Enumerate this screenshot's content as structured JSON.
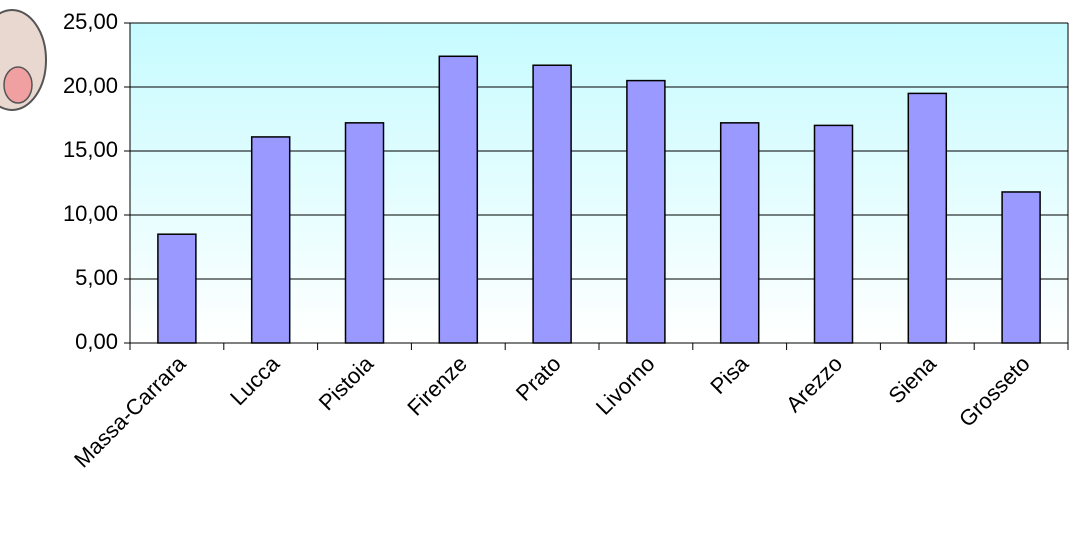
{
  "chart_data": {
    "type": "bar",
    "categories": [
      "Massa-Carrara",
      "Lucca",
      "Pistoia",
      "Firenze",
      "Prato",
      "Livorno",
      "Pisa",
      "Arezzo",
      "Siena",
      "Grosseto"
    ],
    "values": [
      8.5,
      16.1,
      17.2,
      22.4,
      21.7,
      20.5,
      17.2,
      17.0,
      19.5,
      11.8
    ],
    "color": "#9999ff",
    "ylim": [
      0,
      25
    ],
    "yticks": [
      {
        "value": 0,
        "label": "0,00"
      },
      {
        "value": 5,
        "label": "5,00"
      },
      {
        "value": 10,
        "label": "10,00"
      },
      {
        "value": 15,
        "label": "15,00"
      },
      {
        "value": 20,
        "label": "20,00"
      },
      {
        "value": 25,
        "label": "25,00"
      }
    ],
    "grid": true
  }
}
